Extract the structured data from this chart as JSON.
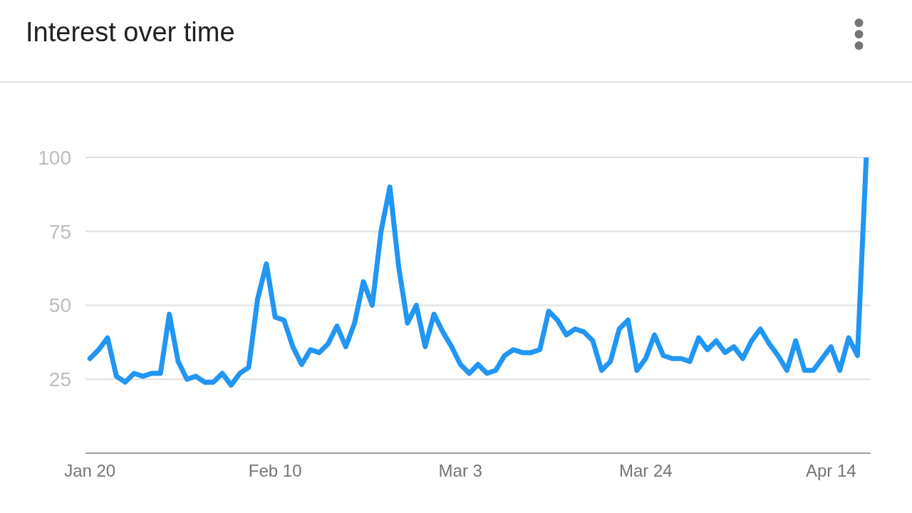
{
  "chart_data": {
    "type": "line",
    "title": "Interest over time",
    "x": [
      "--01-20",
      "--01-21",
      "--01-22",
      "--01-23",
      "--01-24",
      "--01-25",
      "--01-26",
      "--01-27",
      "--01-28",
      "--01-29",
      "--01-30",
      "--01-31",
      "--02-01",
      "--02-02",
      "--02-03",
      "--02-04",
      "--02-05",
      "--02-06",
      "--02-07",
      "--02-08",
      "--02-09",
      "--02-10",
      "--02-11",
      "--02-12",
      "--02-13",
      "--02-14",
      "--02-15",
      "--02-16",
      "--02-17",
      "--02-18",
      "--02-19",
      "--02-20",
      "--02-21",
      "--02-22",
      "--02-23",
      "--02-24",
      "--02-25",
      "--02-26",
      "--02-27",
      "--02-28",
      "--03-01",
      "--03-02",
      "--03-03",
      "--03-04",
      "--03-05",
      "--03-06",
      "--03-07",
      "--03-08",
      "--03-09",
      "--03-10",
      "--03-11",
      "--03-12",
      "--03-13",
      "--03-14",
      "--03-15",
      "--03-16",
      "--03-17",
      "--03-18",
      "--03-19",
      "--03-20",
      "--03-21",
      "--03-22",
      "--03-23",
      "--03-24",
      "--03-25",
      "--03-26",
      "--03-27",
      "--03-28",
      "--03-29",
      "--03-30",
      "--03-31",
      "--04-01",
      "--04-02",
      "--04-03",
      "--04-04",
      "--04-05",
      "--04-06",
      "--04-07",
      "--04-08",
      "--04-09",
      "--04-10",
      "--04-11",
      "--04-12",
      "--04-13",
      "--04-14",
      "--04-15",
      "--04-16",
      "--04-17",
      "--04-18"
    ],
    "series": [
      {
        "color": "#2196f3",
        "values": [
          32,
          35,
          39,
          26,
          24,
          27,
          26,
          27,
          27,
          47,
          31,
          25,
          26,
          24,
          24,
          27,
          23,
          27,
          29,
          52,
          64,
          46,
          45,
          36,
          30,
          35,
          34,
          37,
          43,
          36,
          44,
          58,
          50,
          75,
          90,
          63,
          44,
          50,
          36,
          47,
          41,
          36,
          30,
          27,
          30,
          27,
          28,
          33,
          35,
          34,
          34,
          35,
          48,
          45,
          40,
          42,
          41,
          38,
          28,
          31,
          42,
          45,
          28,
          32,
          40,
          33,
          32,
          32,
          31,
          39,
          35,
          38,
          34,
          36,
          32,
          38,
          42,
          37,
          33,
          28,
          38,
          28,
          28,
          32,
          36,
          28,
          39,
          33,
          100
        ]
      }
    ],
    "xlim": [
      "--01-19T12:00",
      "--04-18T12:00"
    ],
    "xticks": [
      {
        "value": "--01-20",
        "label": "Jan 20"
      },
      {
        "value": "--02-10",
        "label": "Feb 10"
      },
      {
        "value": "--03-03",
        "label": "Mar 3"
      },
      {
        "value": "--03-24",
        "label": "Mar 24"
      },
      {
        "value": "--04-14",
        "label": "Apr 14"
      }
    ],
    "ylim": [
      0,
      100
    ],
    "yticks": [
      25,
      50,
      75,
      100
    ],
    "grid": "y"
  }
}
